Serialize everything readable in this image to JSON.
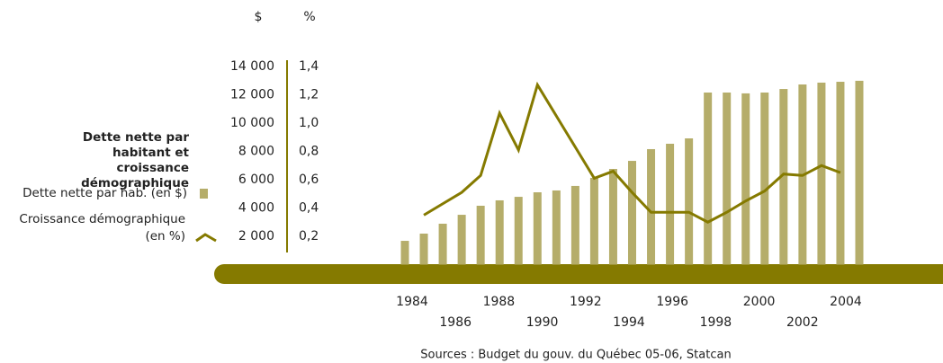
{
  "chart_data": {
    "type": "bar",
    "title": "Dette nette par habitant et croissance démographique",
    "y_label": "$",
    "y2_label": "%",
    "source": "Sources : Budget du gouv. du Québec 05-06, Statcan",
    "categories": [
      null,
      null,
      null,
      null,
      null,
      null,
      null,
      null,
      null,
      null,
      null,
      null,
      null,
      null,
      null,
      null,
      null,
      null,
      null,
      null,
      null,
      null,
      null,
      null,
      null
    ],
    "xlim": [
      1983.7,
      2004.3
    ],
    "xticks": [
      1984,
      1986,
      1988,
      1990,
      1992,
      1994,
      1996,
      1998,
      2000,
      2002,
      2004
    ],
    "series": [
      {
        "name": "Dette nette par hab. (en $)",
        "color": "#b5ad6a",
        "type": "bar",
        "values": [
          1680,
          2190,
          2890,
          3520,
          4160,
          4540,
          4790,
          5110,
          5240,
          5560,
          6130,
          6760,
          7330,
          8160,
          8540,
          8920,
          12160,
          12160,
          12100,
          12160,
          12410,
          12730,
          12860,
          12920,
          12990
        ]
      },
      {
        "name": "Croissance démographique (en %)",
        "color": "#857a00",
        "type": "line",
        "axis": "y2",
        "values": [
          null,
          0.35,
          0.43,
          0.51,
          0.63,
          1.07,
          0.81,
          1.27,
          1.05,
          0.83,
          0.61,
          0.66,
          0.51,
          0.37,
          0.37,
          0.37,
          0.3,
          0.37,
          0.45,
          0.52,
          0.64,
          0.63,
          0.7,
          0.65,
          null
        ]
      }
    ],
    "ylim": [
      0,
      14000
    ],
    "yticks": [
      {
        "value": 2000,
        "label": "2 000"
      },
      {
        "value": 4000,
        "label": "4 000"
      },
      {
        "value": 6000,
        "label": "6 000"
      },
      {
        "value": 8000,
        "label": "8 000"
      },
      {
        "value": 10000,
        "label": "10 000"
      },
      {
        "value": 12000,
        "label": "12 000"
      },
      {
        "value": 14000,
        "label": "14 000"
      }
    ],
    "y2lim": [
      0,
      1.4
    ],
    "y2ticks": [
      {
        "value": 0.2,
        "label": "0,2"
      },
      {
        "value": 0.4,
        "label": "0,4"
      },
      {
        "value": 0.6,
        "label": "0,6"
      },
      {
        "value": 0.8,
        "label": "0,8"
      },
      {
        "value": 1.0,
        "label": "1,0"
      },
      {
        "value": 1.2,
        "label": "1,2"
      },
      {
        "value": 1.4,
        "label": "1,4"
      }
    ]
  }
}
